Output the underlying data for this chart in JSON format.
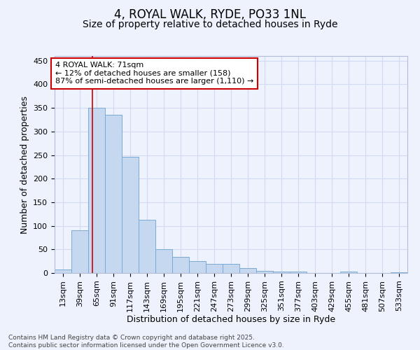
{
  "title1": "4, ROYAL WALK, RYDE, PO33 1NL",
  "title2": "Size of property relative to detached houses in Ryde",
  "xlabel": "Distribution of detached houses by size in Ryde",
  "ylabel": "Number of detached properties",
  "bar_left_edges": [
    13,
    39,
    65,
    91,
    117,
    143,
    169,
    195,
    221,
    247,
    273,
    299,
    325,
    351,
    377,
    403,
    429,
    455,
    481,
    507,
    533
  ],
  "bar_heights": [
    7,
    90,
    350,
    335,
    247,
    113,
    50,
    34,
    25,
    20,
    20,
    10,
    5,
    3,
    3,
    0,
    0,
    3,
    0,
    0,
    2
  ],
  "bin_width": 26,
  "bar_color": "#c5d8f0",
  "bar_edge_color": "#7aabd4",
  "tick_labels": [
    "13sqm",
    "39sqm",
    "65sqm",
    "91sqm",
    "117sqm",
    "143sqm",
    "169sqm",
    "195sqm",
    "221sqm",
    "247sqm",
    "273sqm",
    "299sqm",
    "325sqm",
    "351sqm",
    "377sqm",
    "403sqm",
    "429sqm",
    "455sqm",
    "481sqm",
    "507sqm",
    "533sqm"
  ],
  "vline_x": 71,
  "vline_color": "#cc0000",
  "annotation_line1": "4 ROYAL WALK: 71sqm",
  "annotation_line2": "← 12% of detached houses are smaller (158)",
  "annotation_line3": "87% of semi-detached houses are larger (1,110) →",
  "annotation_box_color": "#ffffff",
  "annotation_border_color": "#cc0000",
  "ylim": [
    0,
    460
  ],
  "yticks": [
    0,
    50,
    100,
    150,
    200,
    250,
    300,
    350,
    400,
    450
  ],
  "background_color": "#eef2fc",
  "grid_color": "#d0daf5",
  "footer_text": "Contains HM Land Registry data © Crown copyright and database right 2025.\nContains public sector information licensed under the Open Government Licence v3.0.",
  "title_fontsize": 12,
  "subtitle_fontsize": 10,
  "axis_label_fontsize": 9,
  "tick_fontsize": 8,
  "annotation_fontsize": 8,
  "footer_fontsize": 6.5
}
